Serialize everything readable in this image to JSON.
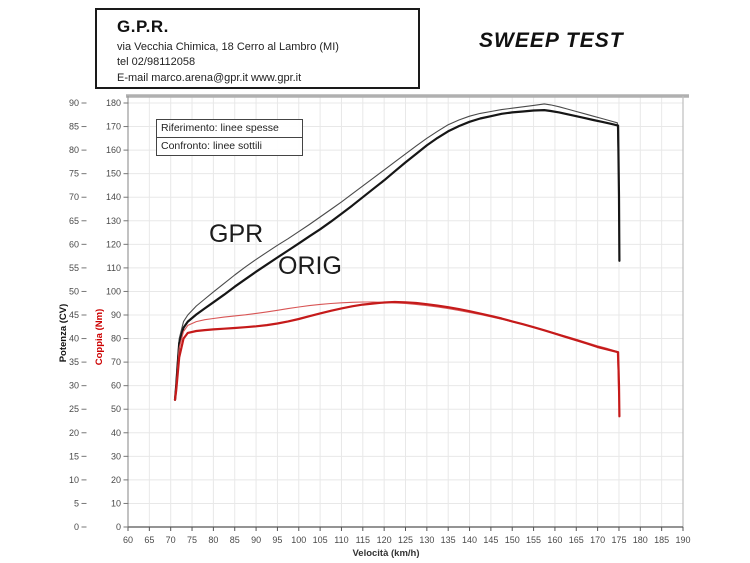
{
  "header": {
    "company": "G.P.R.",
    "address": "via Vecchia Chimica, 18 Cerro al Lambro (MI)",
    "phone": "tel 02/98112058",
    "email_web": "E-mail marco.arena@gpr.it  www.gpr.it"
  },
  "title": "SWEEP TEST",
  "legend": {
    "reference": "Riferimento: linee spesse",
    "comparison": "Confronto: linee sottili"
  },
  "curve_labels": {
    "gpr": "GPR",
    "orig": "ORIG"
  },
  "chart_data": {
    "type": "line",
    "title": "SWEEP TEST",
    "xlabel": "Velocità (km/h)",
    "ylabel_power": "Potenza (CV)",
    "ylabel_torque": "Coppia (Nm)",
    "x_range": [
      60,
      190
    ],
    "power_range": [
      0,
      90
    ],
    "torque_range": [
      0,
      180
    ],
    "x_ticks": [
      60,
      65,
      70,
      75,
      80,
      85,
      90,
      95,
      100,
      105,
      110,
      115,
      120,
      125,
      130,
      135,
      140,
      145,
      150,
      155,
      160,
      165,
      170,
      175,
      180,
      185,
      190
    ],
    "power_ticks": [
      0,
      5,
      10,
      15,
      20,
      25,
      30,
      35,
      40,
      45,
      50,
      55,
      60,
      65,
      70,
      75,
      80,
      85,
      90
    ],
    "torque_ticks": [
      0,
      10,
      20,
      30,
      40,
      50,
      60,
      70,
      80,
      90,
      100,
      110,
      120,
      130,
      140,
      150,
      160,
      170,
      180
    ],
    "grid": true,
    "legend_position": "top-left",
    "colors": {
      "grid": "#e8e8e8",
      "axis": "#555555",
      "border_top": "#b0b0b0",
      "border_side": "#bdbdbd",
      "tick_text": "#4a4a4a",
      "power_title": "#111111",
      "torque_title": "#cc0000"
    },
    "series": [
      {
        "name": "GPR potenza (confronto, linea sottile)",
        "axis": "power",
        "color": "#4a4a4a",
        "width": 1.1,
        "points": [
          [
            71,
            27.3
          ],
          [
            71.3,
            31
          ],
          [
            71.6,
            35
          ],
          [
            72,
            40
          ],
          [
            73,
            43.6
          ],
          [
            74,
            45
          ],
          [
            76,
            46.9
          ],
          [
            78,
            48.4
          ],
          [
            80,
            49.9
          ],
          [
            82.5,
            51.7
          ],
          [
            85,
            53.5
          ],
          [
            87.5,
            55.2
          ],
          [
            90,
            56.8
          ],
          [
            92.5,
            58.3
          ],
          [
            95,
            59.8
          ],
          [
            97.5,
            61.2
          ],
          [
            100,
            62.7
          ],
          [
            102.5,
            64.2
          ],
          [
            105,
            65.8
          ],
          [
            107.5,
            67.4
          ],
          [
            110,
            69
          ],
          [
            112.5,
            70.7
          ],
          [
            115,
            72.4
          ],
          [
            117.5,
            74.1
          ],
          [
            120,
            75.8
          ],
          [
            122.5,
            77.5
          ],
          [
            125,
            79.2
          ],
          [
            127.5,
            80.9
          ],
          [
            130,
            82.5
          ],
          [
            132.5,
            84
          ],
          [
            135,
            85.4
          ],
          [
            137.5,
            86.4
          ],
          [
            140,
            87.2
          ],
          [
            142.5,
            87.8
          ],
          [
            145,
            88.2
          ],
          [
            147.5,
            88.6
          ],
          [
            150,
            88.9
          ],
          [
            152.5,
            89.2
          ],
          [
            155,
            89.5
          ],
          [
            157.5,
            89.8
          ],
          [
            159,
            89.6
          ],
          [
            161,
            89.2
          ],
          [
            163,
            88.7
          ],
          [
            165,
            88.2
          ],
          [
            167,
            87.7
          ],
          [
            169,
            87.2
          ],
          [
            171,
            86.7
          ],
          [
            173,
            86.2
          ],
          [
            174.6,
            85.8
          ],
          [
            174.8,
            80
          ],
          [
            174.9,
            75.5
          ]
        ]
      },
      {
        "name": "ORIG potenza (riferimento, linea spessa)",
        "axis": "power",
        "color": "#161616",
        "width": 2.2,
        "points": [
          [
            71,
            27
          ],
          [
            71.3,
            30
          ],
          [
            71.6,
            34
          ],
          [
            72,
            39
          ],
          [
            73,
            42.3
          ],
          [
            74,
            43.6
          ],
          [
            76,
            45.1
          ],
          [
            78,
            46.4
          ],
          [
            80,
            47.7
          ],
          [
            82.5,
            49.3
          ],
          [
            85,
            51
          ],
          [
            87.5,
            52.6
          ],
          [
            90,
            54.2
          ],
          [
            92.5,
            55.7
          ],
          [
            95,
            57.2
          ],
          [
            97.5,
            58.7
          ],
          [
            100,
            60.2
          ],
          [
            102.5,
            61.7
          ],
          [
            105,
            63.2
          ],
          [
            107.5,
            64.8
          ],
          [
            110,
            66.5
          ],
          [
            112.5,
            68.2
          ],
          [
            115,
            70
          ],
          [
            117.5,
            71.8
          ],
          [
            120,
            73.6
          ],
          [
            122.5,
            75.5
          ],
          [
            125,
            77.4
          ],
          [
            127.5,
            79.2
          ],
          [
            130,
            81
          ],
          [
            132.5,
            82.6
          ],
          [
            135,
            84
          ],
          [
            137.5,
            85.1
          ],
          [
            140,
            86
          ],
          [
            142.5,
            86.7
          ],
          [
            145,
            87.2
          ],
          [
            147.5,
            87.7
          ],
          [
            150,
            88
          ],
          [
            152.5,
            88.2
          ],
          [
            155,
            88.4
          ],
          [
            157.5,
            88.5
          ],
          [
            159,
            88.3
          ],
          [
            161,
            88
          ],
          [
            163,
            87.6
          ],
          [
            165,
            87.2
          ],
          [
            167,
            86.8
          ],
          [
            169,
            86.4
          ],
          [
            171,
            86
          ],
          [
            173,
            85.6
          ],
          [
            174.8,
            85.2
          ],
          [
            175,
            70
          ],
          [
            175.1,
            56.5
          ]
        ]
      },
      {
        "name": "GPR coppia (confronto, linea sottile)",
        "axis": "torque",
        "color": "#d85555",
        "width": 1.1,
        "points": [
          [
            71,
            54.3
          ],
          [
            71.3,
            60
          ],
          [
            71.6,
            67
          ],
          [
            72,
            76
          ],
          [
            73,
            83
          ],
          [
            74,
            85.6
          ],
          [
            76,
            87.2
          ],
          [
            78,
            88
          ],
          [
            80,
            88.5
          ],
          [
            82.5,
            89.1
          ],
          [
            85,
            89.6
          ],
          [
            87.5,
            90.1
          ],
          [
            90,
            90.7
          ],
          [
            92.5,
            91.3
          ],
          [
            95,
            92
          ],
          [
            97.5,
            92.7
          ],
          [
            100,
            93.4
          ],
          [
            102.5,
            94
          ],
          [
            105,
            94.5
          ],
          [
            107.5,
            94.9
          ],
          [
            110,
            95.2
          ],
          [
            112.5,
            95.4
          ],
          [
            115,
            95.5
          ],
          [
            117.5,
            95.5
          ],
          [
            120,
            95.4
          ],
          [
            122.5,
            95.2
          ],
          [
            125,
            94.9
          ],
          [
            127.5,
            94.5
          ],
          [
            130,
            94
          ],
          [
            132.5,
            93.4
          ],
          [
            135,
            92.7
          ],
          [
            137.5,
            91.9
          ],
          [
            140,
            91.1
          ],
          [
            142.5,
            90.2
          ],
          [
            145,
            89.2
          ],
          [
            147.5,
            88.2
          ],
          [
            150,
            87.1
          ],
          [
            152.5,
            86
          ],
          [
            155,
            84.8
          ],
          [
            157.5,
            83.6
          ],
          [
            160,
            82.3
          ],
          [
            162.5,
            81
          ],
          [
            165,
            79.7
          ],
          [
            167.5,
            78.3
          ],
          [
            170,
            76.9
          ],
          [
            172,
            75.9
          ],
          [
            174.6,
            74.4
          ],
          [
            174.8,
            66
          ],
          [
            174.9,
            58
          ]
        ]
      },
      {
        "name": "ORIG coppia (riferimento, linea spessa)",
        "axis": "torque",
        "color": "#c51a1a",
        "width": 2.2,
        "points": [
          [
            71,
            54
          ],
          [
            71.3,
            58
          ],
          [
            71.6,
            64
          ],
          [
            72,
            72
          ],
          [
            73,
            80
          ],
          [
            74,
            82.4
          ],
          [
            76,
            83.2
          ],
          [
            78,
            83.6
          ],
          [
            80,
            83.9
          ],
          [
            82.5,
            84.2
          ],
          [
            85,
            84.5
          ],
          [
            87.5,
            84.8
          ],
          [
            90,
            85.2
          ],
          [
            92.5,
            85.7
          ],
          [
            95,
            86.4
          ],
          [
            97.5,
            87.3
          ],
          [
            100,
            88.3
          ],
          [
            102.5,
            89.5
          ],
          [
            105,
            90.7
          ],
          [
            107.5,
            91.8
          ],
          [
            110,
            92.8
          ],
          [
            112.5,
            93.7
          ],
          [
            115,
            94.4
          ],
          [
            117.5,
            94.9
          ],
          [
            120,
            95.3
          ],
          [
            122.5,
            95.5
          ],
          [
            125,
            95.4
          ],
          [
            127.5,
            95.1
          ],
          [
            130,
            94.6
          ],
          [
            132.5,
            94
          ],
          [
            135,
            93.3
          ],
          [
            137.5,
            92.5
          ],
          [
            140,
            91.6
          ],
          [
            142.5,
            90.6
          ],
          [
            145,
            89.6
          ],
          [
            147.5,
            88.5
          ],
          [
            150,
            87.3
          ],
          [
            152.5,
            86.1
          ],
          [
            155,
            84.8
          ],
          [
            157.5,
            83.5
          ],
          [
            160,
            82.1
          ],
          [
            162.5,
            80.7
          ],
          [
            165,
            79.3
          ],
          [
            167.5,
            77.9
          ],
          [
            170,
            76.4
          ],
          [
            172,
            75.5
          ],
          [
            174.8,
            74.2
          ],
          [
            175,
            60
          ],
          [
            175.1,
            47
          ]
        ]
      }
    ]
  }
}
